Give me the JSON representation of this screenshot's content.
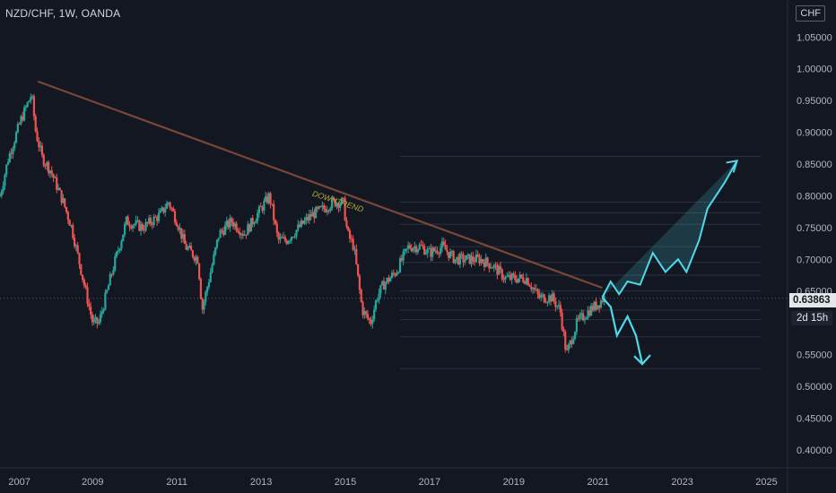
{
  "header": {
    "symbol_line": "NZD/CHF, 1W, OANDA",
    "currency_button": "CHF"
  },
  "price_axis": {
    "ticks": [
      "1.05000",
      "1.00000",
      "0.95000",
      "0.90000",
      "0.85000",
      "0.80000",
      "0.75000",
      "0.70000",
      "0.65000",
      "0.55000",
      "0.50000",
      "0.45000",
      "0.40000"
    ],
    "current_price": "0.63863",
    "countdown": "2d 15h"
  },
  "time_axis": {
    "ticks": [
      "2007",
      "2009",
      "2011",
      "2013",
      "2015",
      "2017",
      "2019",
      "2021",
      "2023",
      "2025"
    ]
  },
  "annotations": {
    "trendline_label": "DOWNTREND"
  },
  "colors": {
    "background": "#131722",
    "up": "#26a69a",
    "down": "#ef5350",
    "projection": "#4dd9e6",
    "trendline": "#8d4f3c",
    "trend_label": "#b5a83a",
    "grid": "#2a2e39"
  },
  "chart_data": {
    "type": "candlestick",
    "title": "NZD/CHF, 1W, OANDA",
    "y_range": [
      0.38,
      1.08
    ],
    "x_range": [
      2006.8,
      2025.5
    ],
    "current_price": 0.63863,
    "close_path": {
      "x": [
        2006.8,
        2007.0,
        2007.3,
        2007.55,
        2007.65,
        2007.8,
        2008.0,
        2008.3,
        2008.5,
        2008.8,
        2009.0,
        2009.15,
        2009.5,
        2009.8,
        2010.2,
        2010.6,
        2010.8,
        2011.0,
        2011.2,
        2011.5,
        2011.6,
        2011.8,
        2012.0,
        2012.3,
        2012.6,
        2012.9,
        2013.2,
        2013.4,
        2013.6,
        2013.9,
        2014.2,
        2014.5,
        2014.7,
        2014.95,
        2015.05,
        2015.2,
        2015.4,
        2015.6,
        2015.75,
        2015.9,
        2016.2,
        2016.5,
        2016.8,
        2017.0,
        2017.3,
        2017.6,
        2017.9,
        2018.2,
        2018.5,
        2018.8,
        2019.0,
        2019.3,
        2019.6,
        2019.9,
        2020.1,
        2020.25,
        2020.5,
        2020.8,
        2021.0,
        2021.15
      ],
      "y": [
        0.8,
        0.86,
        0.92,
        0.96,
        0.9,
        0.86,
        0.84,
        0.79,
        0.75,
        0.66,
        0.6,
        0.6,
        0.69,
        0.76,
        0.75,
        0.77,
        0.79,
        0.76,
        0.72,
        0.7,
        0.62,
        0.68,
        0.74,
        0.76,
        0.74,
        0.77,
        0.8,
        0.73,
        0.73,
        0.75,
        0.77,
        0.78,
        0.79,
        0.79,
        0.74,
        0.72,
        0.62,
        0.6,
        0.64,
        0.66,
        0.68,
        0.72,
        0.72,
        0.71,
        0.72,
        0.7,
        0.7,
        0.7,
        0.69,
        0.67,
        0.67,
        0.67,
        0.64,
        0.64,
        0.62,
        0.55,
        0.6,
        0.62,
        0.63,
        0.64
      ]
    },
    "trendline": {
      "x": [
        2007.7,
        2021.1
      ],
      "y": [
        0.98,
        0.655
      ]
    },
    "fib_levels": [
      0.862,
      0.79,
      0.773,
      0.755,
      0.72,
      0.695,
      0.675,
      0.65,
      0.62,
      0.605,
      0.578,
      0.528
    ],
    "projection_up": {
      "x": [
        2021.1,
        2021.3,
        2021.5,
        2021.7,
        2022.0,
        2022.3,
        2022.6,
        2022.9,
        2023.1,
        2023.4,
        2023.6,
        2024.0,
        2024.3
      ],
      "y": [
        0.64,
        0.665,
        0.645,
        0.665,
        0.66,
        0.71,
        0.68,
        0.7,
        0.68,
        0.73,
        0.78,
        0.82,
        0.855
      ]
    },
    "projection_down": {
      "x": [
        2021.1,
        2021.3,
        2021.45,
        2021.7,
        2021.9,
        2022.05
      ],
      "y": [
        0.64,
        0.625,
        0.58,
        0.61,
        0.58,
        0.535
      ]
    }
  }
}
